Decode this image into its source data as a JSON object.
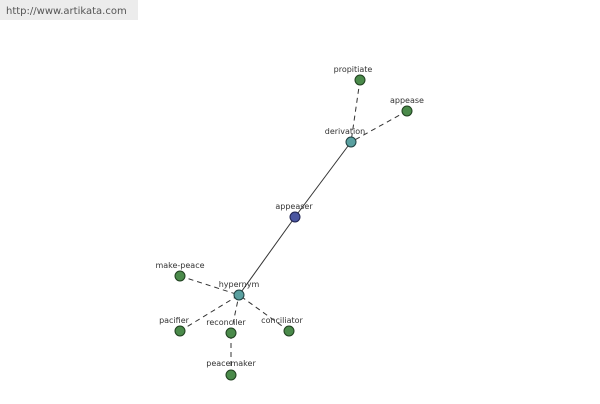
{
  "header": {
    "url": "http://www.artikata.com"
  },
  "nodes": [
    {
      "label": "propitiate"
    },
    {
      "label": "appease"
    },
    {
      "label": "derivation"
    },
    {
      "label": "appeaser"
    },
    {
      "label": "hypernym"
    },
    {
      "label": "make-peace"
    },
    {
      "label": "pacifier"
    },
    {
      "label": "reconciler"
    },
    {
      "label": "conciliator"
    },
    {
      "label": "peacemaker"
    }
  ]
}
